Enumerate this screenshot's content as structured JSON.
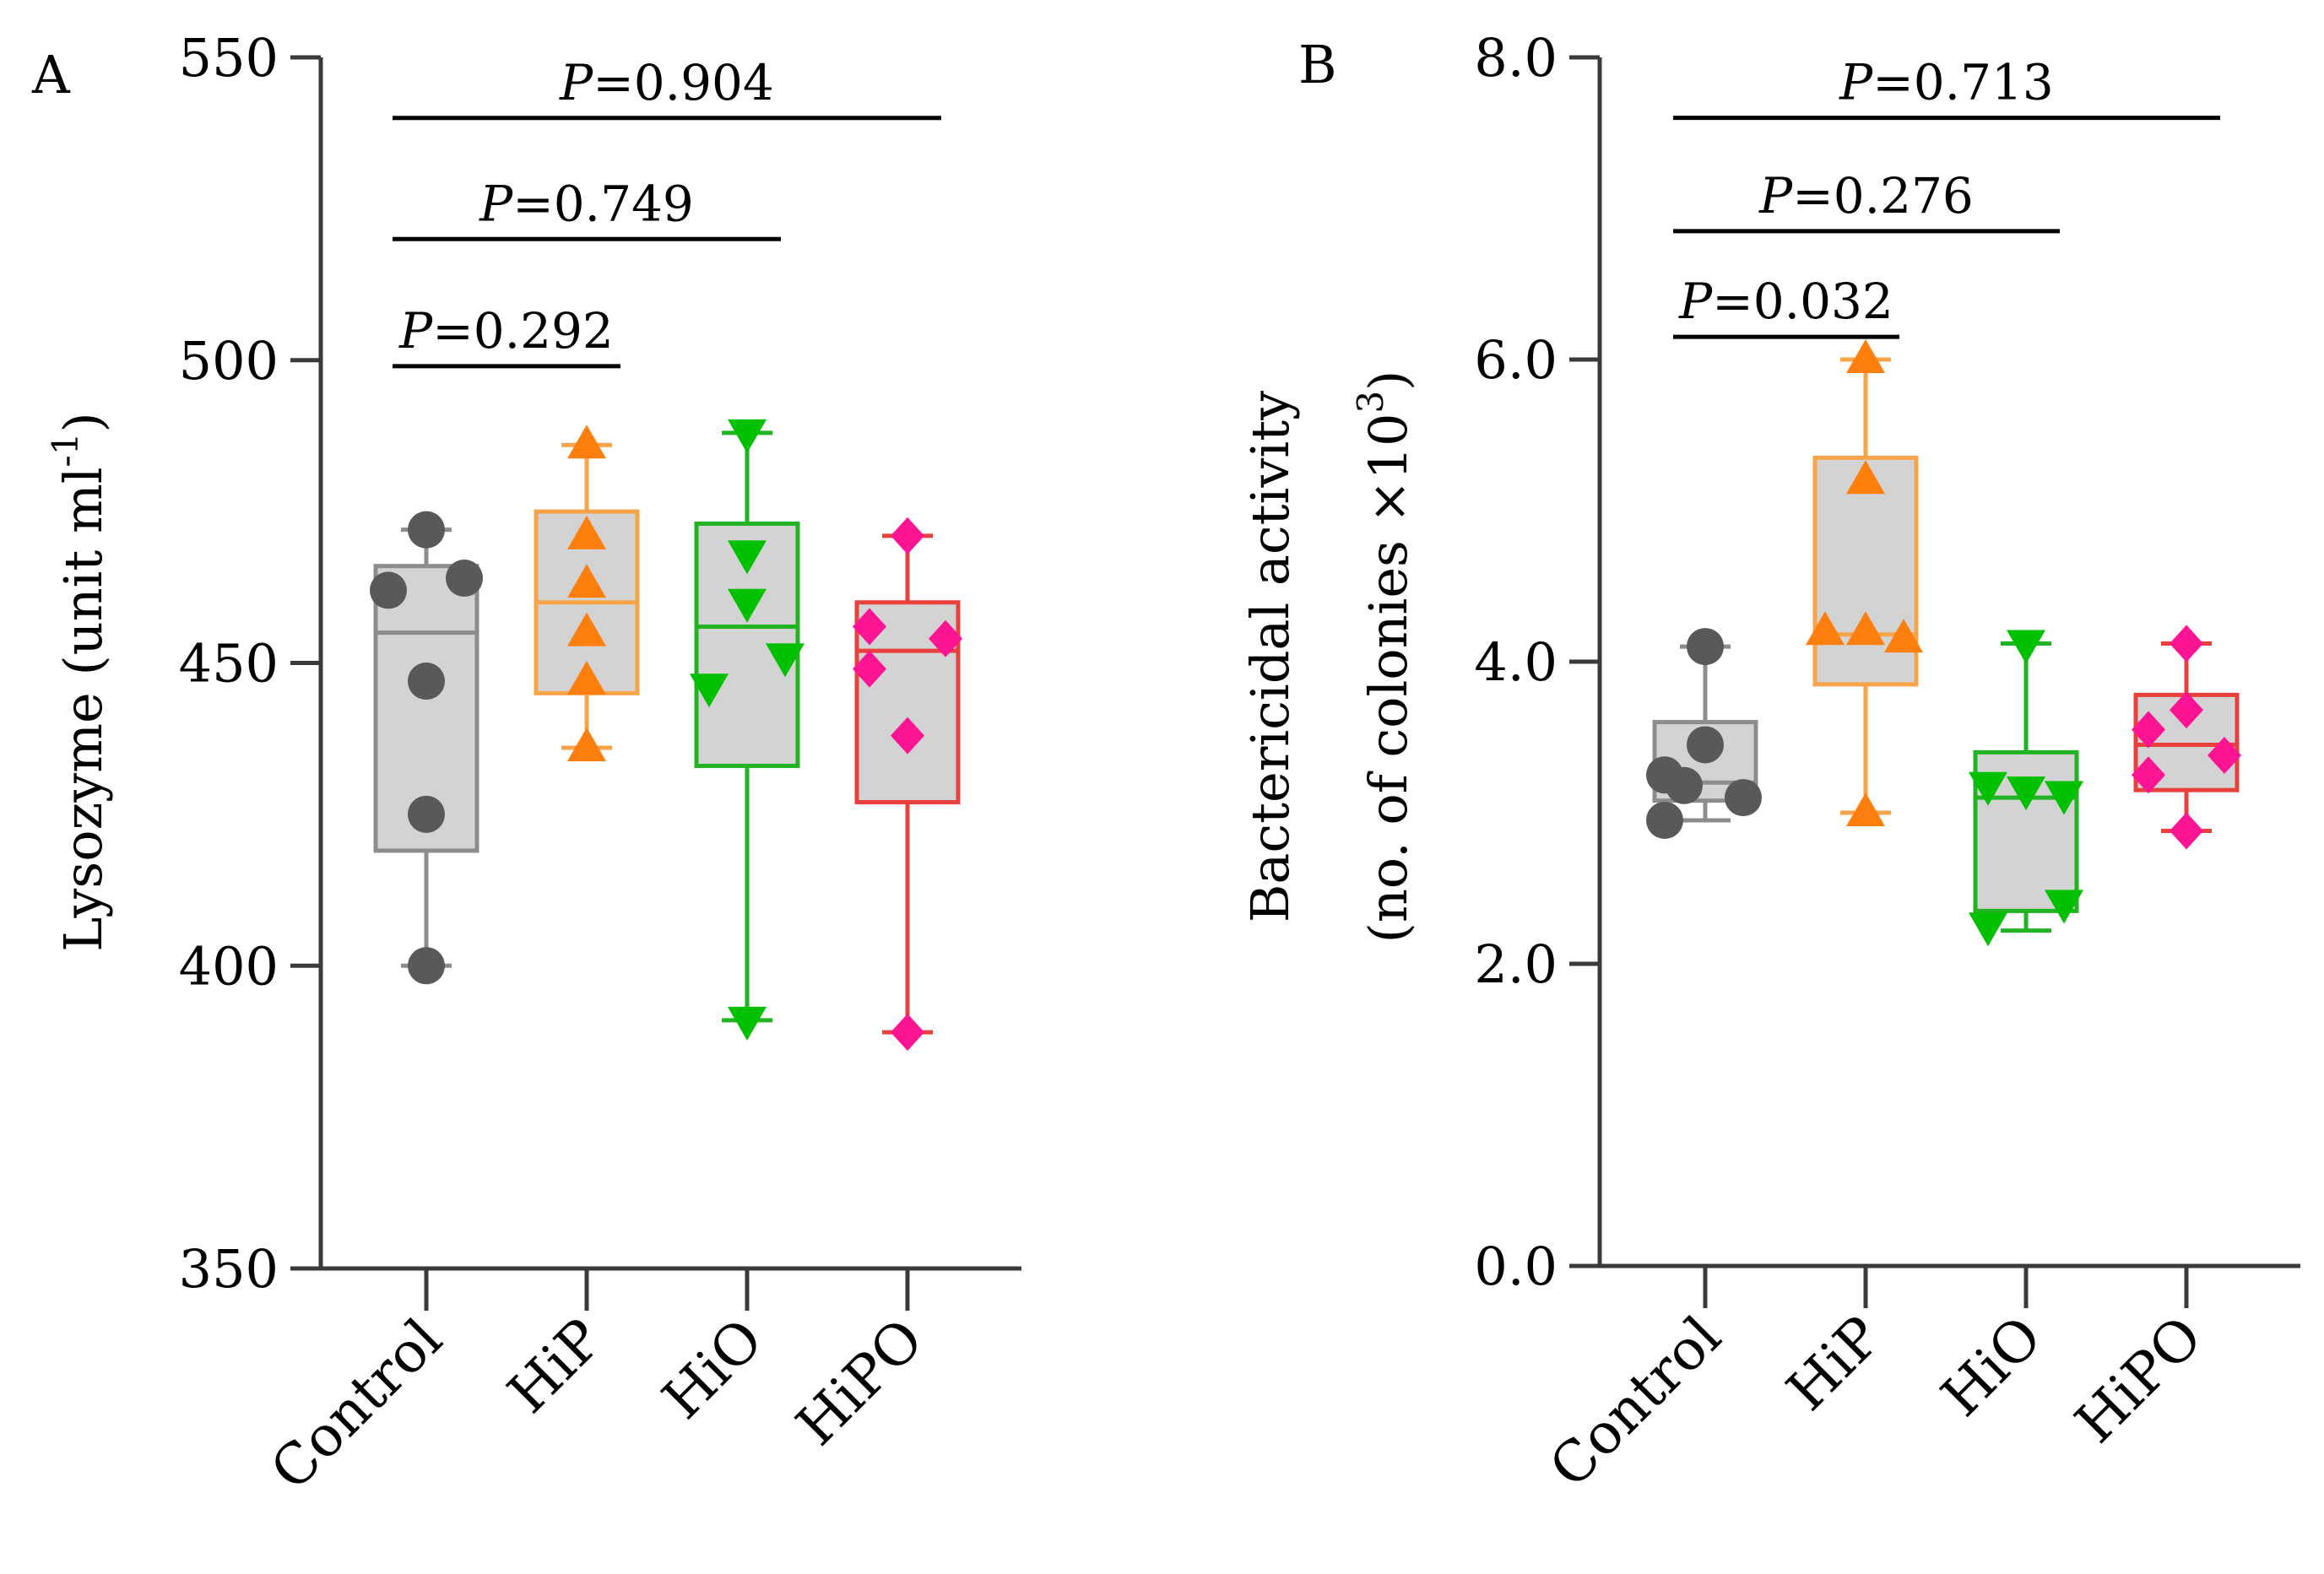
{
  "chart_data": [
    {
      "type": "box",
      "panel_label": "A",
      "ylabel_main": "Lysozyme (unit ml",
      "ylabel_sup": "-1",
      "ylabel_end": ")",
      "ylim": [
        350,
        550
      ],
      "yticks": [
        350,
        400,
        450,
        500,
        550
      ],
      "ytick_labels": [
        "350",
        "400",
        "450",
        "500",
        "550"
      ],
      "categories": [
        "Control",
        "HiP",
        "HiO",
        "HiPO"
      ],
      "groups": [
        {
          "name": "Control",
          "color": "#8c8c8c",
          "point_color": "#595959",
          "marker": "circle",
          "min": 400,
          "q1": 419,
          "median": 455,
          "q3": 466,
          "max": 472,
          "points": [
            472,
            462,
            464,
            447,
            425,
            400
          ]
        },
        {
          "name": "HiP",
          "color": "#f7a34a",
          "point_color": "#ff7f0e",
          "marker": "triangle-up",
          "min": 436,
          "q1": 445,
          "median": 460,
          "q3": 475,
          "max": 486,
          "points": [
            486,
            471,
            463,
            455,
            447,
            436
          ]
        },
        {
          "name": "HiO",
          "color": "#22b322",
          "point_color": "#00c000",
          "marker": "triangle-down",
          "min": 391,
          "q1": 433,
          "median": 456,
          "q3": 473,
          "max": 488,
          "points": [
            488,
            468,
            460,
            451,
            446,
            391
          ]
        },
        {
          "name": "HiPO",
          "color": "#e8403c",
          "point_color": "#ff1493",
          "marker": "diamond",
          "min": 389,
          "q1": 427,
          "median": 452,
          "q3": 460,
          "max": 471,
          "points": [
            471,
            456,
            454,
            449,
            438,
            389
          ]
        }
      ],
      "comparisons": [
        {
          "label_p": "P",
          "label_val": "=0.292",
          "from": 0,
          "to": 1,
          "y": 499
        },
        {
          "label_p": "P",
          "label_val": "=0.749",
          "from": 0,
          "to": 2,
          "y": 520
        },
        {
          "label_p": "P",
          "label_val": "=0.904",
          "from": 0,
          "to": 3,
          "y": 540
        }
      ]
    },
    {
      "type": "box",
      "panel_label": "B",
      "ylabel_line1": "Bactericidal activity",
      "ylabel_line2_main": "(no. of colonies ×10",
      "ylabel_line2_sup": "3",
      "ylabel_line2_end": ")",
      "ylim": [
        0,
        8
      ],
      "yticks": [
        0,
        2,
        4,
        6,
        8
      ],
      "ytick_labels": [
        "0.0",
        "2.0",
        "4.0",
        "6.0",
        "8.0"
      ],
      "categories": [
        "Control",
        "HiP",
        "HiO",
        "HiPO"
      ],
      "groups": [
        {
          "name": "Control",
          "color": "#8c8c8c",
          "point_color": "#595959",
          "marker": "circle",
          "min": 2.95,
          "q1": 3.08,
          "median": 3.2,
          "q3": 3.6,
          "max": 4.1,
          "points": [
            4.1,
            3.45,
            3.25,
            3.18,
            3.1,
            2.95
          ]
        },
        {
          "name": "HiP",
          "color": "#f7a34a",
          "point_color": "#ff7f0e",
          "marker": "triangle-up",
          "min": 3.0,
          "q1": 3.85,
          "median": 4.18,
          "q3": 5.35,
          "max": 6.0,
          "points": [
            6.0,
            5.2,
            4.2,
            4.2,
            4.15,
            3.0
          ]
        },
        {
          "name": "HiO",
          "color": "#22b322",
          "point_color": "#00c000",
          "marker": "triangle-down",
          "min": 2.22,
          "q1": 2.35,
          "median": 3.1,
          "q3": 3.4,
          "max": 4.12,
          "points": [
            4.12,
            3.18,
            3.15,
            3.12,
            2.4,
            2.25
          ]
        },
        {
          "name": "HiPO",
          "color": "#e8403c",
          "point_color": "#ff1493",
          "marker": "diamond",
          "min": 2.88,
          "q1": 3.15,
          "median": 3.45,
          "q3": 3.78,
          "max": 4.12,
          "points": [
            4.12,
            3.68,
            3.55,
            3.38,
            3.25,
            2.88
          ]
        }
      ],
      "comparisons": [
        {
          "label_p": "P",
          "label_val": "=0.032",
          "from": 0,
          "to": 1,
          "y": 6.15
        },
        {
          "label_p": "P",
          "label_val": "=0.276",
          "from": 0,
          "to": 2,
          "y": 6.85
        },
        {
          "label_p": "P",
          "label_val": "=0.713",
          "from": 0,
          "to": 3,
          "y": 7.6
        }
      ]
    }
  ]
}
